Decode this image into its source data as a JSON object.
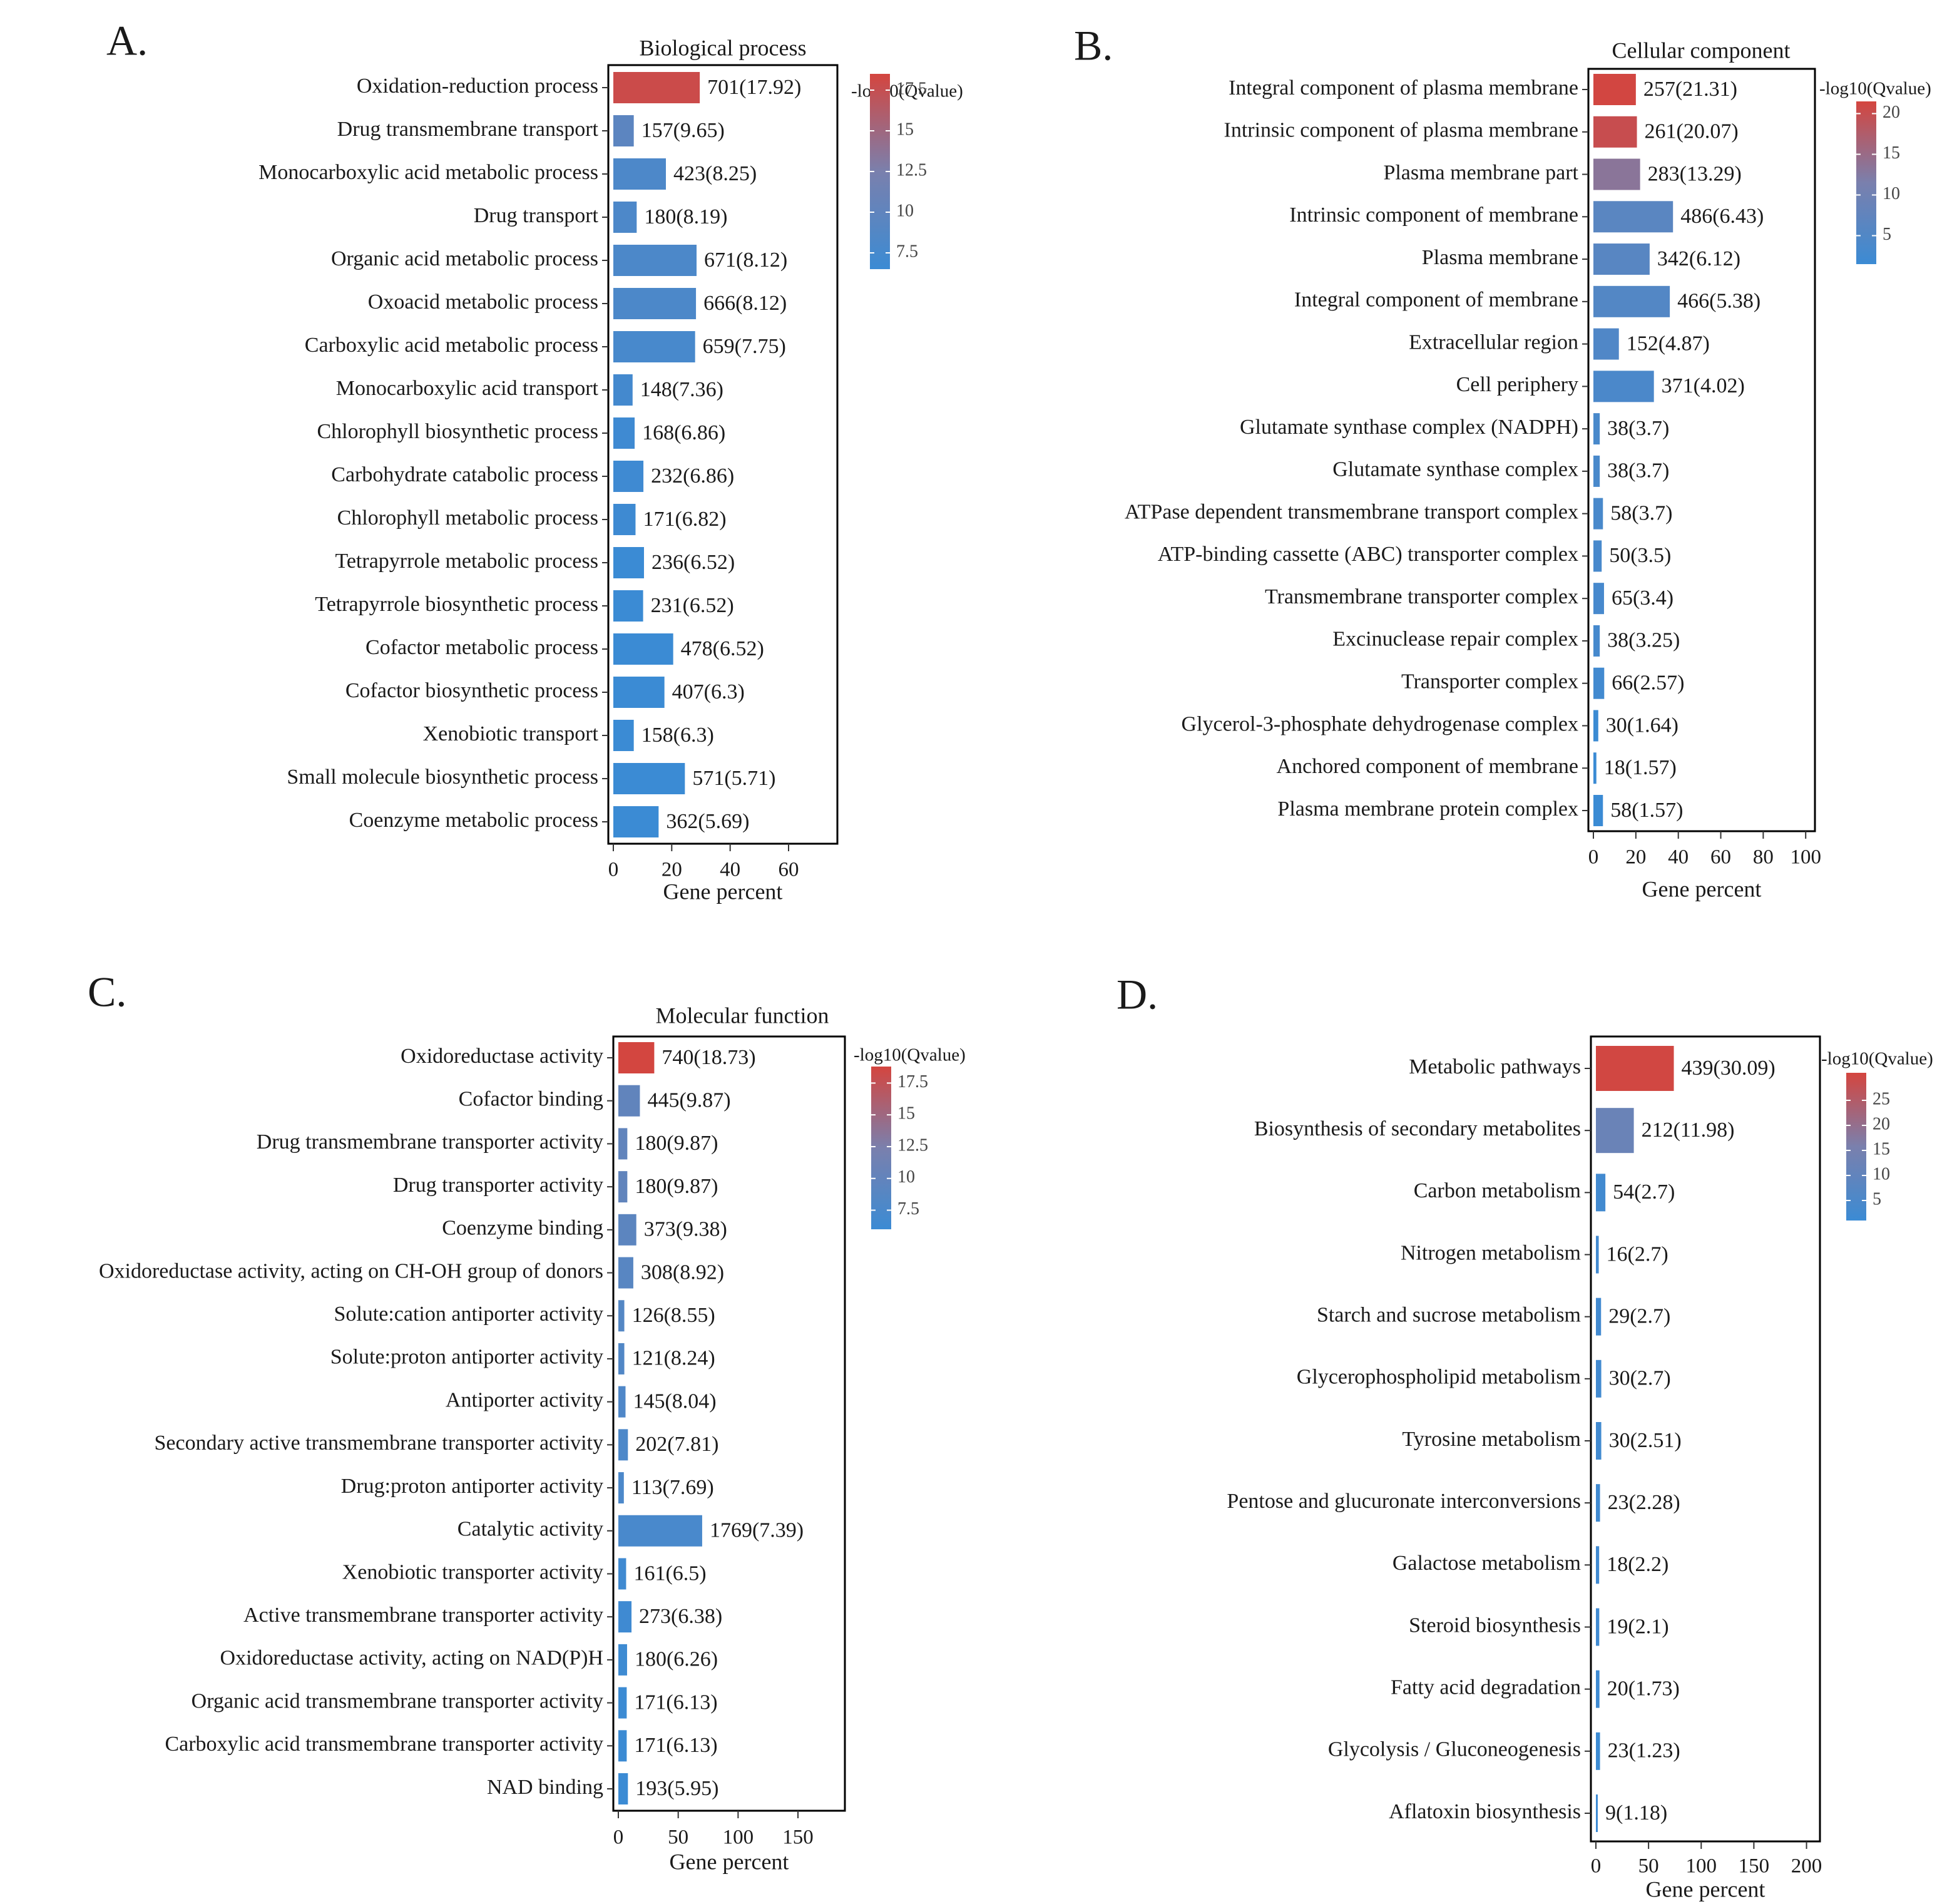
{
  "colors": {
    "low": "#3b8bd4",
    "mid": "#7a80ad",
    "high": "#d4453f"
  },
  "legend_title": "-log10(Qvalue)",
  "chart_data": [
    {
      "id": "A",
      "panel_label": "A.",
      "type": "bar",
      "orientation": "horizontal",
      "title": "Biological process",
      "xlabel": "Gene percent",
      "ylabel": "",
      "xlim": [
        0,
        75
      ],
      "xticks": [
        0,
        20,
        40,
        60
      ],
      "legend": {
        "title": "-log10(Qvalue)",
        "range": [
          6.5,
          18.5
        ],
        "ticks": [
          17.5,
          15,
          12.5,
          10,
          7.5
        ]
      },
      "bars": [
        {
          "label": "Oxidation-reduction process",
          "value": 29.6,
          "text": "701(17.92)",
          "q": 17.92
        },
        {
          "label": "Drug transmembrane transport",
          "value": 7,
          "text": "157(9.65)",
          "q": 9.65
        },
        {
          "label": "Monocarboxylic acid metabolic process",
          "value": 18,
          "text": "423(8.25)",
          "q": 8.25
        },
        {
          "label": "Drug transport",
          "value": 8,
          "text": "180(8.19)",
          "q": 8.19
        },
        {
          "label": "Organic acid metabolic process",
          "value": 28.5,
          "text": "671(8.12)",
          "q": 8.12
        },
        {
          "label": "Oxoacid metabolic process",
          "value": 28.3,
          "text": "666(8.12)",
          "q": 8.12
        },
        {
          "label": "Carboxylic acid metabolic process",
          "value": 28,
          "text": "659(7.75)",
          "q": 7.75
        },
        {
          "label": "Monocarboxylic acid transport",
          "value": 6.6,
          "text": "148(7.36)",
          "q": 7.36
        },
        {
          "label": "Chlorophyll biosynthetic process",
          "value": 7.3,
          "text": "168(6.86)",
          "q": 6.86
        },
        {
          "label": "Carbohydrate catabolic process",
          "value": 10.3,
          "text": "232(6.86)",
          "q": 6.86
        },
        {
          "label": "Chlorophyll metabolic process",
          "value": 7.6,
          "text": "171(6.82)",
          "q": 6.82
        },
        {
          "label": "Tetrapyrrole metabolic process",
          "value": 10.5,
          "text": "236(6.52)",
          "q": 6.52
        },
        {
          "label": "Tetrapyrrole biosynthetic process",
          "value": 10.2,
          "text": "231(6.52)",
          "q": 6.52
        },
        {
          "label": "Cofactor metabolic process",
          "value": 20.5,
          "text": "478(6.52)",
          "q": 6.52
        },
        {
          "label": "Cofactor biosynthetic process",
          "value": 17.5,
          "text": "407(6.3)",
          "q": 6.3
        },
        {
          "label": "Xenobiotic transport",
          "value": 7,
          "text": "158(6.3)",
          "q": 6.3
        },
        {
          "label": "Small molecule biosynthetic process",
          "value": 24.5,
          "text": "571(5.71)",
          "q": 5.71
        },
        {
          "label": "Coenzyme metabolic process",
          "value": 15.5,
          "text": "362(5.69)",
          "q": 5.69
        }
      ]
    },
    {
      "id": "B",
      "panel_label": "B.",
      "type": "bar",
      "orientation": "horizontal",
      "title": "Cellular component",
      "xlabel": "Gene percent",
      "ylabel": "",
      "xlim": [
        0,
        102
      ],
      "xticks": [
        0,
        20,
        40,
        60,
        80,
        100
      ],
      "legend": {
        "title": "-log10(Qvalue)",
        "range": [
          1.5,
          21.5
        ],
        "ticks": [
          20,
          15,
          10,
          5
        ]
      },
      "bars": [
        {
          "label": "Integral component of plasma membrane",
          "value": 20,
          "text": "257(21.31)",
          "q": 21.31
        },
        {
          "label": "Intrinsic component of plasma membrane",
          "value": 20.5,
          "text": "261(20.07)",
          "q": 20.07
        },
        {
          "label": "Plasma membrane part",
          "value": 22,
          "text": "283(13.29)",
          "q": 13.29
        },
        {
          "label": "Intrinsic component of membrane",
          "value": 37.5,
          "text": "486(6.43)",
          "q": 6.43
        },
        {
          "label": "Plasma membrane",
          "value": 26.5,
          "text": "342(6.12)",
          "q": 6.12
        },
        {
          "label": "Integral component of membrane",
          "value": 36,
          "text": "466(5.38)",
          "q": 5.38
        },
        {
          "label": "Extracellular region",
          "value": 12,
          "text": "152(4.87)",
          "q": 4.87
        },
        {
          "label": "Cell periphery",
          "value": 28.5,
          "text": "371(4.02)",
          "q": 4.02
        },
        {
          "label": "Glutamate synthase complex (NADPH)",
          "value": 3,
          "text": "38(3.7)",
          "q": 3.7
        },
        {
          "label": "Glutamate synthase complex",
          "value": 3,
          "text": "38(3.7)",
          "q": 3.7
        },
        {
          "label": "ATPase dependent transmembrane transport complex",
          "value": 4.5,
          "text": "58(3.7)",
          "q": 3.7
        },
        {
          "label": "ATP-binding cassette (ABC) transporter complex",
          "value": 3.9,
          "text": "50(3.5)",
          "q": 3.5
        },
        {
          "label": "Transmembrane transporter complex",
          "value": 5,
          "text": "65(3.4)",
          "q": 3.4
        },
        {
          "label": "Excinuclease repair complex",
          "value": 3,
          "text": "38(3.25)",
          "q": 3.25
        },
        {
          "label": "Transporter complex",
          "value": 5.1,
          "text": "66(2.57)",
          "q": 2.57
        },
        {
          "label": "Glycerol-3-phosphate dehydrogenase complex",
          "value": 2.3,
          "text": "30(1.64)",
          "q": 1.64
        },
        {
          "label": "Anchored component of membrane",
          "value": 1.4,
          "text": "18(1.57)",
          "q": 1.57
        },
        {
          "label": "Plasma membrane protein complex",
          "value": 4.5,
          "text": "58(1.57)",
          "q": 1.57
        }
      ]
    },
    {
      "id": "C",
      "panel_label": "C.",
      "type": "bar",
      "orientation": "horizontal",
      "title": "Molecular function",
      "xlabel": "Gene percent",
      "ylabel": "",
      "xlim": [
        0,
        185
      ],
      "xticks": [
        0,
        50,
        100,
        150
      ],
      "legend": {
        "title": "-log10(Qvalue)",
        "range": [
          6.0,
          18.8
        ],
        "ticks": [
          17.5,
          15,
          12.5,
          10,
          7.5
        ]
      },
      "bars": [
        {
          "label": "Oxidoreductase activity",
          "value": 30,
          "text": "740(18.73)",
          "q": 18.73
        },
        {
          "label": "Cofactor binding",
          "value": 18,
          "text": "445(9.87)",
          "q": 9.87
        },
        {
          "label": "Drug transmembrane transporter activity",
          "value": 7.5,
          "text": "180(9.87)",
          "q": 9.87
        },
        {
          "label": "Drug transporter activity",
          "value": 7.5,
          "text": "180(9.87)",
          "q": 9.87
        },
        {
          "label": "Coenzyme binding",
          "value": 15,
          "text": "373(9.38)",
          "q": 9.38
        },
        {
          "label": "Oxidoreductase activity, acting on CH-OH group of donors",
          "value": 12.5,
          "text": "308(8.92)",
          "q": 8.92
        },
        {
          "label": "Solute:cation antiporter activity",
          "value": 5,
          "text": "126(8.55)",
          "q": 8.55
        },
        {
          "label": "Solute:proton antiporter activity",
          "value": 5,
          "text": "121(8.24)",
          "q": 8.24
        },
        {
          "label": "Antiporter activity",
          "value": 6,
          "text": "145(8.04)",
          "q": 8.04
        },
        {
          "label": "Secondary active transmembrane transporter activity",
          "value": 8,
          "text": "202(7.81)",
          "q": 7.81
        },
        {
          "label": "Drug:proton antiporter activity",
          "value": 4.6,
          "text": "113(7.69)",
          "q": 7.69
        },
        {
          "label": "Catalytic activity",
          "value": 70,
          "text": "1769(7.39)",
          "q": 7.39
        },
        {
          "label": "Xenobiotic transporter activity",
          "value": 6.5,
          "text": "161(6.5)",
          "q": 6.5
        },
        {
          "label": "Active transmembrane transporter activity",
          "value": 11,
          "text": "273(6.38)",
          "q": 6.38
        },
        {
          "label": "Oxidoreductase activity, acting on NAD(P)H",
          "value": 7.3,
          "text": "180(6.26)",
          "q": 6.26
        },
        {
          "label": "Organic acid transmembrane transporter activity",
          "value": 7,
          "text": "171(6.13)",
          "q": 6.13
        },
        {
          "label": "Carboxylic acid transmembrane transporter activity",
          "value": 7,
          "text": "171(6.13)",
          "q": 6.13
        },
        {
          "label": "NAD binding",
          "value": 8,
          "text": "193(5.95)",
          "q": 5.95
        }
      ]
    },
    {
      "id": "D",
      "panel_label": "D.",
      "type": "bar",
      "orientation": "horizontal",
      "title": "",
      "xlabel": "Gene percent",
      "ylabel": "",
      "xlim": [
        0,
        208
      ],
      "xticks": [
        0,
        50,
        100,
        150,
        200
      ],
      "legend": {
        "title": "-log10(Qvalue)",
        "range": [
          1.0,
          30.5
        ],
        "ticks": [
          25,
          20,
          15,
          10,
          5
        ]
      },
      "bars": [
        {
          "label": "Metabolic pathways",
          "value": 74,
          "text": "439(30.09)",
          "q": 30.09
        },
        {
          "label": "Biosynthesis of secondary metabolites",
          "value": 36,
          "text": "212(11.98)",
          "q": 11.98
        },
        {
          "label": "Carbon metabolism",
          "value": 9,
          "text": "54(2.7)",
          "q": 2.7
        },
        {
          "label": "Nitrogen metabolism",
          "value": 2.7,
          "text": "16(2.7)",
          "q": 2.7
        },
        {
          "label": "Starch and sucrose metabolism",
          "value": 4.9,
          "text": "29(2.7)",
          "q": 2.7
        },
        {
          "label": "Glycerophospholipid metabolism",
          "value": 5.1,
          "text": "30(2.7)",
          "q": 2.7
        },
        {
          "label": "Tyrosine metabolism",
          "value": 5.1,
          "text": "30(2.51)",
          "q": 2.51
        },
        {
          "label": "Pentose and glucuronate interconversions",
          "value": 3.9,
          "text": "23(2.28)",
          "q": 2.28
        },
        {
          "label": "Galactose metabolism",
          "value": 3.1,
          "text": "18(2.2)",
          "q": 2.2
        },
        {
          "label": "Steroid biosynthesis",
          "value": 3.2,
          "text": "19(2.1)",
          "q": 2.1
        },
        {
          "label": "Fatty acid degradation",
          "value": 3.4,
          "text": "20(1.73)",
          "q": 1.73
        },
        {
          "label": "Glycolysis / Gluconeogenesis",
          "value": 3.9,
          "text": "23(1.23)",
          "q": 1.23
        },
        {
          "label": "Aflatoxin biosynthesis",
          "value": 1.5,
          "text": "9(1.18)",
          "q": 1.18
        }
      ]
    }
  ]
}
